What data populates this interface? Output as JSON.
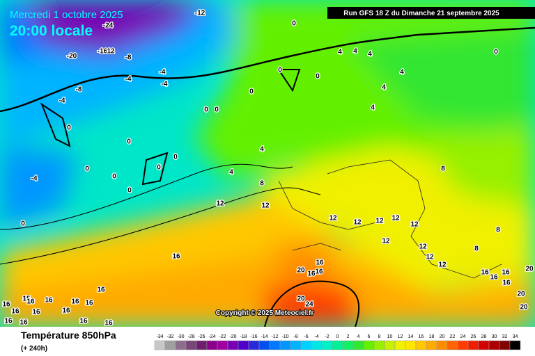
{
  "header": {
    "date": "Mercredi 1 octobre 2025",
    "time": "20:00 locale",
    "run": "Run GFS 18 Z du Dimanche 21 septembre 2025",
    "copyright": "Copyright © 2025 Meteociel.fr"
  },
  "footer": {
    "title": "Température 850hPa",
    "lead": "(+ 240h)"
  },
  "color_scale": {
    "values": [
      -34,
      -32,
      -30,
      -28,
      -26,
      -24,
      -22,
      -20,
      -18,
      -16,
      -14,
      -12,
      -10,
      -8,
      -6,
      -4,
      -2,
      0,
      2,
      4,
      6,
      8,
      10,
      12,
      14,
      16,
      18,
      20,
      22,
      24,
      26,
      28,
      30,
      32,
      34
    ],
    "colors": [
      "#c8c8c8",
      "#a0a0a0",
      "#8c6e8c",
      "#784678",
      "#6e1e6e",
      "#8c008c",
      "#a000a0",
      "#7800b4",
      "#5000c8",
      "#2828dc",
      "#0050f0",
      "#0078ff",
      "#0096ff",
      "#00b4ff",
      "#00d2ff",
      "#00e6e6",
      "#00f0c8",
      "#00f096",
      "#14f064",
      "#32e632",
      "#64f000",
      "#96f000",
      "#c8f000",
      "#f0f000",
      "#ffe600",
      "#ffc800",
      "#ffaa00",
      "#ff8c00",
      "#ff6400",
      "#ff3c00",
      "#f01e00",
      "#d20000",
      "#aa0000",
      "#820000",
      "#000000"
    ]
  },
  "map_labels": [
    "-12",
    "-24",
    "-20",
    "-16",
    "12",
    "-8",
    "-4",
    "-4",
    "-4",
    "-8",
    "-4",
    "0",
    "0",
    "0",
    "0",
    "0",
    "0",
    "0",
    "0",
    "0",
    "0",
    "0",
    "0",
    "0",
    "-4",
    "0",
    "4",
    "4",
    "4",
    "0",
    "4",
    "4",
    "4",
    "4",
    "4",
    "8",
    "8",
    "8",
    "8",
    "12",
    "12",
    "12",
    "12",
    "12",
    "12",
    "12",
    "12",
    "12",
    "12",
    "12",
    "16",
    "16",
    "16",
    "20",
    "16",
    "16",
    "16",
    "16",
    "16",
    "20",
    "20",
    "24",
    "20",
    "16",
    "16",
    "15",
    "16",
    "16",
    "16",
    "16",
    "16",
    "16",
    "16",
    "16",
    "16",
    "16",
    "16",
    "20"
  ]
}
